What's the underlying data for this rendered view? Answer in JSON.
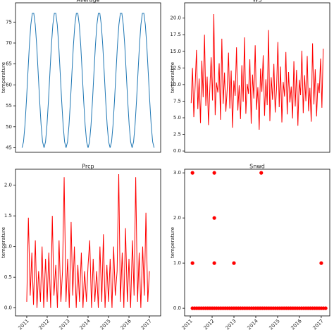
{
  "chart_data": [
    {
      "type": "line",
      "title": "Average",
      "y_label": "temperature",
      "color": "#1f77b4",
      "values": [
        45,
        46.4,
        50.4,
        56.2,
        62.9,
        69.4,
        74.4,
        77.1,
        77.1,
        74.4,
        69.4,
        62.9,
        56.2,
        50.4,
        46.4,
        45,
        46.4,
        50.4,
        56.2,
        62.9,
        69.4,
        74.4,
        77.1,
        77.1,
        74.4,
        69.4,
        62.9,
        56.2,
        50.4,
        46.4,
        45,
        46.4,
        50.4,
        56.2,
        62.9,
        69.4,
        74.4,
        77.1,
        77.1,
        74.4,
        69.4,
        62.9,
        56.2,
        50.4,
        46.4,
        45,
        46.4,
        50.4,
        56.2,
        62.9,
        69.4,
        74.4,
        77.1,
        77.1,
        74.4,
        69.4,
        62.9,
        56.2,
        50.4,
        46.4,
        45,
        46.4,
        50.4,
        56.2,
        62.9,
        69.4,
        74.4,
        77.1,
        77.1,
        74.4,
        69.4,
        62.9,
        56.2,
        50.4,
        46.4,
        45,
        46.4,
        50.4,
        56.2,
        62.9,
        69.4,
        74.4,
        77.1,
        77.1,
        74.4,
        69.4,
        62.9,
        56.2,
        50.4,
        46.4,
        45
      ],
      "ylim": [
        43.9,
        79.6
      ],
      "yticks": [
        45,
        50,
        55,
        60,
        65,
        70,
        75
      ]
    },
    {
      "type": "line",
      "title": "WS",
      "y_label": "temperature",
      "color": "#ff0000",
      "values": [
        7.2,
        12.5,
        5.1,
        9.8,
        15.2,
        6.3,
        10.9,
        4.2,
        13.6,
        8.1,
        17.5,
        6.8,
        11.2,
        3.9,
        9.4,
        14.1,
        7.6,
        20.6,
        5.4,
        10.3,
        8.8,
        13.2,
        4.7,
        16.9,
        7.1,
        11.8,
        5.9,
        9.2,
        14.8,
        6.4,
        12.1,
        3.5,
        10.6,
        8.3,
        15.6,
        6.1,
        9.9,
        4.8,
        12.9,
        7.4,
        17.1,
        5.6,
        10.1,
        8.6,
        13.8,
        4.1,
        11.5,
        7.9,
        15.9,
        6.2,
        9.6,
        3.2,
        12.4,
        8.9,
        14.4,
        5.3,
        10.8,
        6.9,
        18.2,
        4.5,
        11.1,
        7.7,
        13.1,
        5.8,
        9.3,
        16.4,
        6.6,
        12.7,
        4.3,
        10.4,
        8.2,
        14.9,
        5.5,
        11.9,
        7.3,
        9.7,
        4.9,
        13.5,
        6.7,
        12.2,
        3.8,
        10.7,
        8.4,
        15.1,
        5.7,
        11.4,
        7.5,
        14.3,
        6.0,
        9.5,
        4.4,
        16.2,
        7.0,
        12.3,
        5.2,
        10.2,
        8.7,
        13.9,
        6.5,
        15.4
      ],
      "ylim": [
        -0.2,
        22.3
      ],
      "yticks": [
        {
          "value": 0,
          "label": "0.0"
        },
        2.5,
        {
          "value": 5,
          "label": "5.0"
        },
        7.5,
        {
          "value": 10,
          "label": "10.0"
        },
        12.5,
        {
          "value": 15,
          "label": "15.0"
        },
        17.5,
        {
          "value": 20,
          "label": "20.0"
        }
      ]
    },
    {
      "type": "line",
      "title": "Prcp",
      "y_label": "temperature",
      "color": "#ff0000",
      "x": [
        2011.0,
        2011.08,
        2011.17,
        2011.25,
        2011.33,
        2011.42,
        2011.5,
        2011.58,
        2011.67,
        2011.75,
        2011.83,
        2011.92,
        2012.0,
        2012.08,
        2012.17,
        2012.25,
        2012.33,
        2012.42,
        2012.5,
        2012.58,
        2012.67,
        2012.75,
        2012.83,
        2012.92,
        2013.0,
        2013.08,
        2013.17,
        2013.25,
        2013.33,
        2013.42,
        2013.5,
        2013.58,
        2013.67,
        2013.75,
        2013.83,
        2013.92,
        2014.0,
        2014.08,
        2014.17,
        2014.25,
        2014.33,
        2014.42,
        2014.5,
        2014.58,
        2014.67,
        2014.75,
        2014.83,
        2014.92,
        2015.0,
        2015.08,
        2015.17,
        2015.25,
        2015.33,
        2015.42,
        2015.5,
        2015.58,
        2015.67,
        2015.75,
        2015.83,
        2015.92,
        2016.0,
        2016.08,
        2016.17,
        2016.25,
        2016.33,
        2016.42,
        2016.5,
        2016.58,
        2016.67,
        2016.75,
        2016.83,
        2016.92,
        2017.0
      ],
      "values": [
        0.1,
        1.47,
        0.2,
        0.9,
        0.05,
        1.1,
        0,
        0.6,
        0.1,
        1.0,
        0,
        0.8,
        0.1,
        0.9,
        0,
        1.5,
        0.2,
        0.7,
        0,
        1.1,
        0.1,
        0.6,
        2.13,
        0.1,
        0.8,
        0,
        1.4,
        0.2,
        1.0,
        0,
        0.7,
        0.1,
        0.9,
        0,
        0.6,
        0.1,
        0.7,
        1.1,
        0,
        0.8,
        0.1,
        0.6,
        0,
        1.0,
        0.1,
        1.2,
        0,
        0.7,
        0.1,
        0.8,
        0,
        1.0,
        0.2,
        0.6,
        2.18,
        0.1,
        0.9,
        0,
        1.3,
        0.1,
        0.8,
        0,
        1.1,
        0.2,
        2.13,
        0.1,
        0.9,
        0,
        1.0,
        0.2,
        1.55,
        0.1,
        0.6
      ],
      "xlim": [
        2010.45,
        2017.55
      ],
      "xticks": [
        2011,
        2012,
        2013,
        2014,
        2015,
        2016,
        2017
      ],
      "ylim": [
        -0.13,
        2.26
      ],
      "yticks": [
        {
          "value": 0,
          "label": "0.0"
        },
        0.5,
        {
          "value": 1,
          "label": "1.0"
        },
        1.5,
        {
          "value": 2,
          "label": "2.0"
        }
      ]
    },
    {
      "type": "scatter",
      "title": "Snwd",
      "y_label": "temperature",
      "color": "#ff0000",
      "x": [
        2011.1,
        2011.1,
        2012.1,
        2012.1,
        2012.1,
        2013.0,
        2014.25,
        2017.0,
        2011.1,
        2011.2,
        2011.3,
        2011.4,
        2011.5,
        2011.6,
        2011.7,
        2011.8,
        2011.9,
        2012.0,
        2012.1,
        2012.2,
        2012.3,
        2012.4,
        2012.5,
        2012.6,
        2012.7,
        2012.8,
        2012.9,
        2013.0,
        2013.1,
        2013.2,
        2013.3,
        2013.4,
        2013.5,
        2013.6,
        2013.7,
        2013.8,
        2013.9,
        2014.0,
        2014.1,
        2014.2,
        2014.3,
        2014.4,
        2014.5,
        2014.6,
        2014.7,
        2014.8,
        2014.9,
        2015.0,
        2015.1,
        2015.2,
        2015.3,
        2015.4,
        2015.5,
        2015.6,
        2015.7,
        2015.8,
        2015.9,
        2016.0,
        2016.1,
        2016.2,
        2016.3,
        2016.4,
        2016.5,
        2016.6,
        2016.7,
        2016.8,
        2016.9,
        2017.0,
        2017.1,
        2017.2
      ],
      "values": [
        3,
        1,
        3,
        2,
        1,
        1,
        3,
        1,
        0,
        0,
        0,
        0,
        0,
        0,
        0,
        0,
        0,
        0,
        0,
        0,
        0,
        0,
        0,
        0,
        0,
        0,
        0,
        0,
        0,
        0,
        0,
        0,
        0,
        0,
        0,
        0,
        0,
        0,
        0,
        0,
        0,
        0,
        0,
        0,
        0,
        0,
        0,
        0,
        0,
        0,
        0,
        0,
        0,
        0,
        0,
        0,
        0,
        0,
        0,
        0,
        0,
        0,
        0,
        0,
        0,
        0,
        0,
        0,
        0,
        0
      ],
      "xlim": [
        2010.74,
        2017.39
      ],
      "xticks": [
        2011,
        2012,
        2013,
        2014,
        2015,
        2016,
        2017
      ],
      "ylim": [
        -0.17,
        3.08
      ],
      "yticks": [
        {
          "value": 0,
          "label": "0.0"
        },
        {
          "value": 1,
          "label": "1.0"
        },
        {
          "value": 2,
          "label": "2.0"
        },
        {
          "value": 3,
          "label": "3.0"
        }
      ]
    }
  ]
}
